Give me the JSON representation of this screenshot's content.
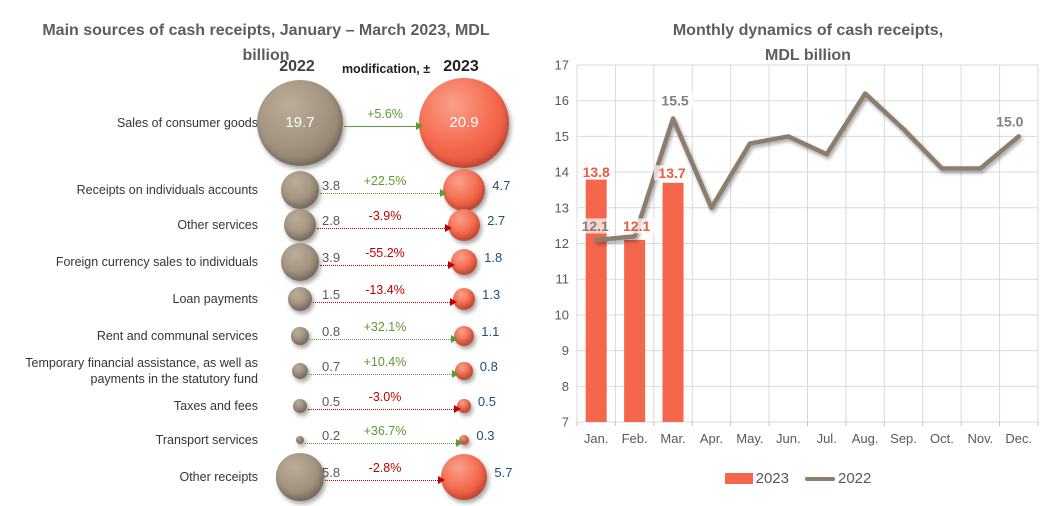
{
  "left_chart": {
    "title_line1": "Main sources of cash receipts, January – March 2023, MDL",
    "title_line2": "billion",
    "header": {
      "col2022": "2022",
      "mod": "modification, ±",
      "col2023": "2023"
    }
  },
  "right_chart": {
    "title_line1": "Monthly dynamics of cash receipts,",
    "title_line2": "MDL billion",
    "legend": [
      {
        "label": "2023"
      },
      {
        "label": "2022"
      }
    ]
  },
  "colors": {
    "orange": "#F4674C",
    "orange_label": "#EC5A3F",
    "taupe": "#8C7D6D",
    "gray_label": "#7F7F7F",
    "green": "#5B9B35",
    "red": "#C00000",
    "blue": "#1F4E79",
    "grid": "#D9D9D9",
    "axis_text": "#595959"
  },
  "chart_data": [
    {
      "type": "bubble-comparison",
      "title": "Main sources of cash receipts, January – March 2023, MDL billion",
      "columns": [
        "2022",
        "modification, ±",
        "2023"
      ],
      "rows": [
        {
          "label": "Sales of consumer goods",
          "v2022": 19.7,
          "change_pct": "+5.6%",
          "v2023": 20.9
        },
        {
          "label": "Receipts on individuals accounts",
          "v2022": 3.8,
          "change_pct": "+22.5%",
          "v2023": 4.7
        },
        {
          "label": "Other services",
          "v2022": 2.8,
          "change_pct": "-3.9%",
          "v2023": 2.7
        },
        {
          "label": "Foreign currency sales to individuals",
          "v2022": 3.9,
          "change_pct": "-55.2%",
          "v2023": 1.8
        },
        {
          "label": "Loan payments",
          "v2022": 1.5,
          "change_pct": "-13.4%",
          "v2023": 1.3
        },
        {
          "label": "Rent and communal services",
          "v2022": 0.8,
          "change_pct": "+32.1%",
          "v2023": 1.1
        },
        {
          "label": "Temporary financial assistance, as well as payments in the statutory fund",
          "v2022": 0.7,
          "change_pct": "+10.4%",
          "v2023": 0.8
        },
        {
          "label": "Taxes and fees",
          "v2022": 0.5,
          "change_pct": "-3.0%",
          "v2023": 0.5
        },
        {
          "label": "Transport services",
          "v2022": 0.2,
          "change_pct": "+36.7%",
          "v2023": 0.3
        },
        {
          "label": "Other receipts",
          "v2022": 5.8,
          "change_pct": "-2.8%",
          "v2023": 5.7
        }
      ]
    },
    {
      "type": "bar+line",
      "title": "Monthly dynamics of cash receipts, MDL billion",
      "categories": [
        "Jan.",
        "Feb.",
        "Mar.",
        "Apr.",
        "May.",
        "Jun.",
        "Jul.",
        "Aug.",
        "Sep.",
        "Oct.",
        "Nov.",
        "Dec."
      ],
      "ylim": [
        7,
        17
      ],
      "ytick_step": 1,
      "grid": true,
      "legend_position": "bottom",
      "series": [
        {
          "name": "2023",
          "type": "bar",
          "color": "#F4674C",
          "values": [
            13.8,
            12.1,
            13.7,
            null,
            null,
            null,
            null,
            null,
            null,
            null,
            null,
            null
          ]
        },
        {
          "name": "2022",
          "type": "line",
          "color": "#8C7D6D",
          "values": [
            12.1,
            12.2,
            15.5,
            13.0,
            14.8,
            15.0,
            14.5,
            16.2,
            15.2,
            14.1,
            14.1,
            15.0
          ]
        }
      ],
      "data_labels": [
        {
          "series": 0,
          "index": 0,
          "text": "13.8"
        },
        {
          "series": 0,
          "index": 1,
          "text": "12.1"
        },
        {
          "series": 0,
          "index": 2,
          "text": "13.7"
        },
        {
          "series": 1,
          "index": 0,
          "text": "12.1"
        },
        {
          "series": 1,
          "index": 2,
          "text": "15.5"
        },
        {
          "series": 1,
          "index": 11,
          "text": "15.0"
        }
      ]
    }
  ]
}
